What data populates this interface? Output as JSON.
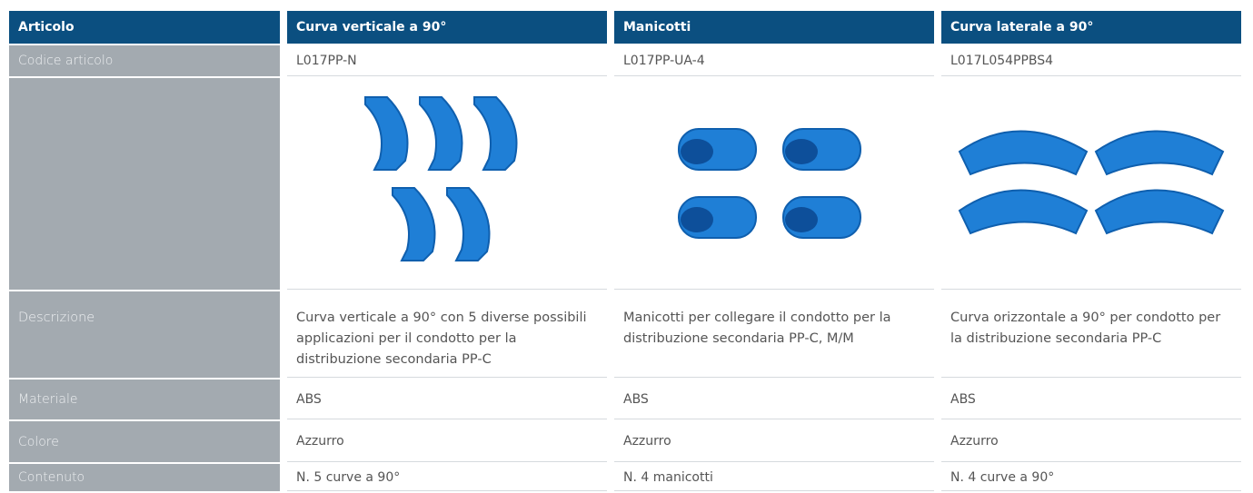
{
  "table": {
    "header": [
      "Articolo",
      "Curva verticale a 90°",
      "Manicotti",
      "Curva laterale a 90°"
    ],
    "rows": [
      [
        "Codice articolo",
        "L017PP-N",
        "L017PP-UA-4",
        "L017L054PPBS4"
      ],
      [
        "Descrizione",
        "Curva verticale a 90° con 5 diverse possibili applicazioni per il condotto per la distribuzione secondaria PP-C",
        "Manicotti per collegare il condotto per la distribuzione secondaria PP-C, M/M",
        "Curva orizzontale a 90° per condotto per la distribuzione secondaria PP-C"
      ],
      [
        "Materiale",
        "ABS",
        "ABS",
        "ABS"
      ],
      [
        "Colore",
        "Azzurro",
        "Azzurro",
        "Azzurro"
      ],
      [
        "Contenuto",
        "N. 5 curve a 90°",
        "N. 4 manicotti",
        "N. 4 curve a 90°"
      ]
    ]
  }
}
